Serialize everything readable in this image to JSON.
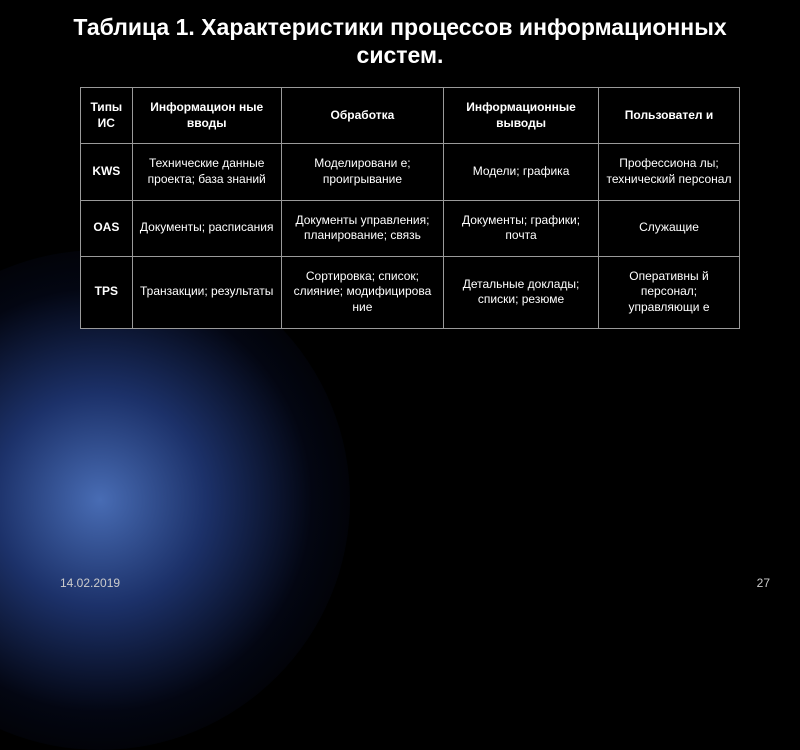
{
  "title": "Таблица 1. Характеристики процессов информационных систем.",
  "table": {
    "type": "table",
    "background_color": "#000000",
    "border_color": "#9a9a9a",
    "text_color": "#ffffff",
    "header_fontsize": 12,
    "cell_fontsize": 12,
    "columns": [
      {
        "label": "Типы ИС",
        "width": "12%"
      },
      {
        "label": "Информацион\nные вводы",
        "width": "20%"
      },
      {
        "label": "Обработка",
        "width": "20%"
      },
      {
        "label": "Информационные выводы",
        "width": "24%"
      },
      {
        "label": "Пользовател\nи",
        "width": "24%"
      }
    ],
    "rows": [
      {
        "label": "KWS",
        "cells": [
          "Технические данные проекта; база знаний",
          "Моделировани\nе; проигрывание",
          "Модели; графика",
          "Профессиона\nлы; технический персонал"
        ]
      },
      {
        "label": "OAS",
        "cells": [
          "Документы; расписания",
          "Документы управления; планирование; связь",
          "Документы; графики; почта",
          "Служащие"
        ]
      },
      {
        "label": "TPS",
        "cells": [
          "Транзакции; результаты",
          "Сортировка; список; слияние; модифицирова\nние",
          "Детальные доклады; списки; резюме",
          "Оперативны\nй персонал; управляющи\nе"
        ]
      }
    ]
  },
  "footer_date": "14.02.2019",
  "page_number": "27"
}
